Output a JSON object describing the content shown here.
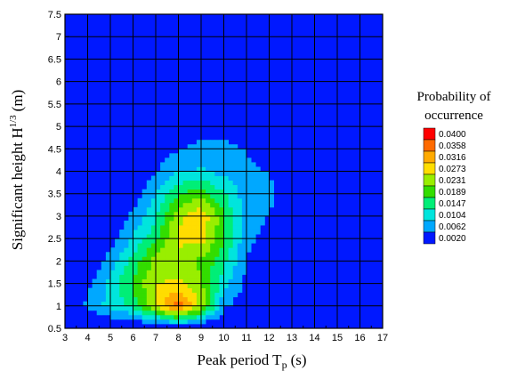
{
  "chart_data": {
    "type": "heatmap",
    "xlabel": "Peak period",
    "xlabel_symbol": "T",
    "xlabel_sub": "p",
    "xlabel_unit": "(s)",
    "ylabel": "Significant height",
    "ylabel_symbol": "H",
    "ylabel_sup": "1/3",
    "ylabel_unit": "(m)",
    "xlim": [
      3,
      17
    ],
    "ylim": [
      0.5,
      7.5
    ],
    "xticks": [
      "3",
      "4",
      "5",
      "6",
      "7",
      "8",
      "9",
      "10",
      "11",
      "12",
      "13",
      "14",
      "15",
      "16",
      "17"
    ],
    "yticks": [
      "0.5",
      "1",
      "1.5",
      "2",
      "2.5",
      "3",
      "3.5",
      "4",
      "4.5",
      "5",
      "5.5",
      "6",
      "6.5",
      "7",
      "7.5"
    ],
    "grid": true,
    "legend": {
      "title_line1": "Probability of",
      "title_line2": "occurrence",
      "placement": "right",
      "levels": [
        "0.0400",
        "0.0358",
        "0.0316",
        "0.0273",
        "0.0231",
        "0.0189",
        "0.0147",
        "0.0104",
        "0.0062",
        "0.0020"
      ],
      "colors": [
        "#ff0000",
        "#ff6a00",
        "#ffaa00",
        "#ffdd00",
        "#99ee00",
        "#33dd00",
        "#00ee77",
        "#00e5dd",
        "#00a8ff",
        "#0018ff"
      ]
    },
    "x": [
      3,
      4,
      5,
      6,
      7,
      8,
      9,
      10,
      11,
      12,
      13,
      14,
      15,
      16,
      17
    ],
    "y": [
      0.5,
      1,
      1.5,
      2,
      2.5,
      3,
      3.5,
      4,
      4.5,
      5,
      5.5,
      6,
      6.5,
      7,
      7.5
    ],
    "z": [
      [
        0,
        0,
        0,
        0,
        0,
        0,
        0,
        0,
        0,
        0,
        0,
        0,
        0,
        0,
        0
      ],
      [
        0.003,
        0.007,
        0.012,
        0.016,
        0.028,
        0.039,
        0.026,
        0.007,
        0.003,
        0,
        0,
        0,
        0,
        0,
        0
      ],
      [
        0,
        0.005,
        0.012,
        0.02,
        0.027,
        0.028,
        0.024,
        0.012,
        0.005,
        0.001,
        0,
        0,
        0,
        0,
        0
      ],
      [
        0,
        0.002,
        0.008,
        0.016,
        0.025,
        0.026,
        0.022,
        0.016,
        0.006,
        0.003,
        0.001,
        0,
        0,
        0,
        0
      ],
      [
        0,
        0,
        0.004,
        0.011,
        0.018,
        0.028,
        0.029,
        0.02,
        0.007,
        0.005,
        0.002,
        0.001,
        0,
        0,
        0
      ],
      [
        0,
        0,
        0.002,
        0.007,
        0.014,
        0.026,
        0.031,
        0.02,
        0.008,
        0.006,
        0.003,
        0.001,
        0,
        0,
        0
      ],
      [
        0,
        0,
        0.001,
        0.004,
        0.01,
        0.019,
        0.021,
        0.015,
        0.008,
        0.007,
        0.004,
        0.002,
        0.002,
        0.001,
        0
      ],
      [
        0,
        0,
        0,
        0.002,
        0.006,
        0.01,
        0.011,
        0.009,
        0.007,
        0.006,
        0.004,
        0.003,
        0.003,
        0.002,
        0
      ],
      [
        0,
        0,
        0,
        0.001,
        0.003,
        0.006,
        0.007,
        0.007,
        0.006,
        0.004,
        0.001,
        0,
        0,
        0,
        0
      ],
      [
        0,
        0,
        0,
        0,
        0.001,
        0.003,
        0.005,
        0.005,
        0.004,
        0.002,
        0,
        0,
        0,
        0,
        0
      ],
      [
        0,
        0,
        0,
        0,
        0,
        0.001,
        0.002,
        0.003,
        0.004,
        0.002,
        0,
        0,
        0,
        0,
        0
      ],
      [
        0,
        0,
        0,
        0,
        0,
        0,
        0,
        0.001,
        0.002,
        0.001,
        0,
        0,
        0,
        0,
        0
      ],
      [
        0,
        0,
        0,
        0,
        0,
        0,
        0,
        0,
        0,
        0,
        0,
        0,
        0,
        0,
        0
      ],
      [
        0,
        0,
        0,
        0,
        0,
        0,
        0,
        0,
        0,
        0,
        0,
        0,
        0,
        0,
        0
      ],
      [
        0,
        0,
        0,
        0,
        0,
        0,
        0,
        0,
        0,
        0,
        0,
        0,
        0,
        0,
        0
      ]
    ]
  }
}
